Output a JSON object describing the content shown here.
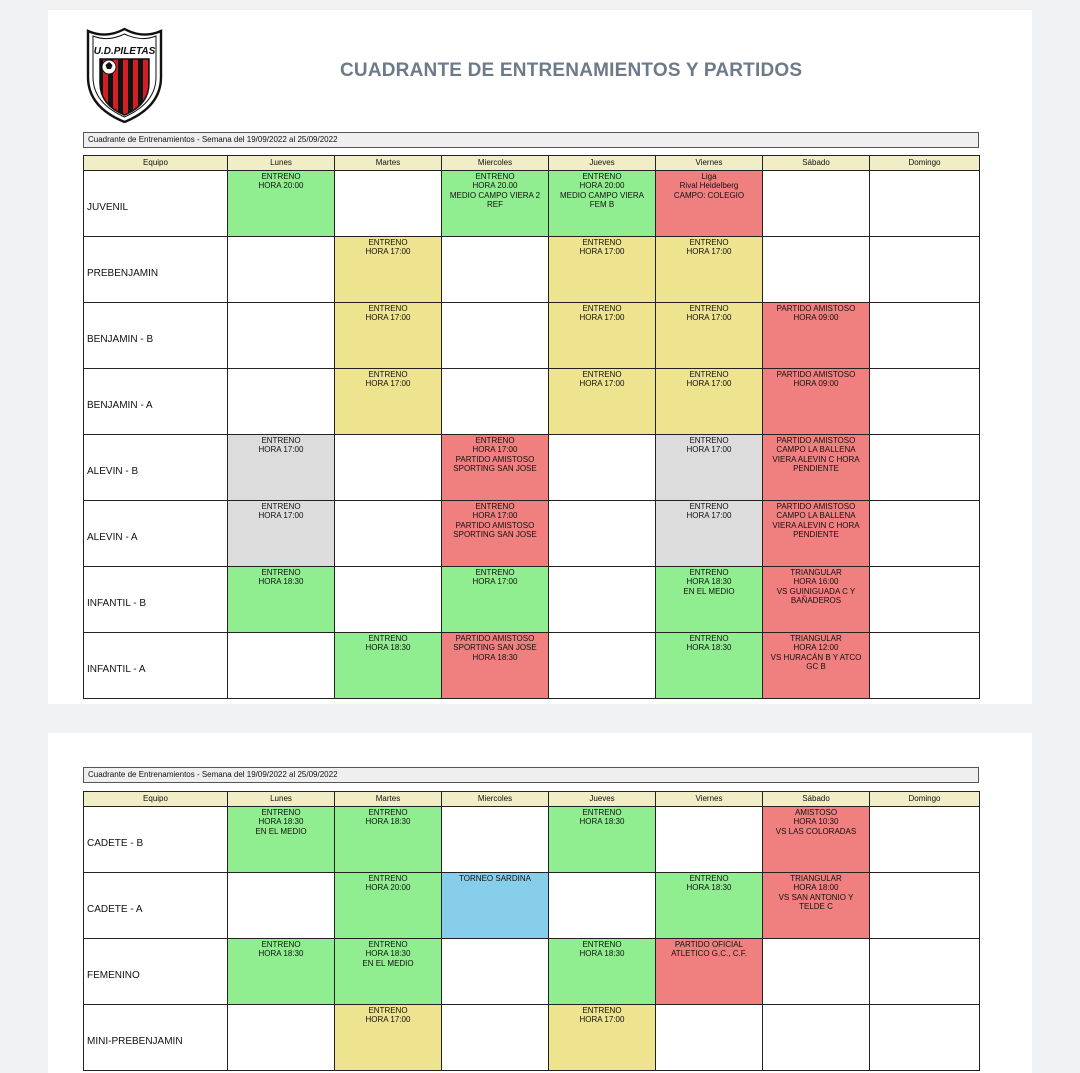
{
  "club": {
    "logo_text": "U.D.PILETAS"
  },
  "document": {
    "title": "CUADRANTE DE ENTRENAMIENTOS Y PARTIDOS"
  },
  "colors": {
    "entreno_green": "#90ee90",
    "entreno_yellow": "#eee38e",
    "partido_red": "#f08080",
    "entreno_gray": "#dcdcdc",
    "torneo_blue": "#87ceeb",
    "header_bg": "#f0edc7"
  },
  "columns": [
    "Equipo",
    "Lunes",
    "Martes",
    "Miercoles",
    "Jueves",
    "Viernes",
    "Sábado",
    "Domingo"
  ],
  "pages": [
    {
      "week_label": "Cuadrante de Entrenamientos - Semana del 19/09/2022 al 25/09/2022",
      "rows": [
        {
          "team": "JUVENIL",
          "cells": [
            {
              "color": "green",
              "text": "ENTRENO\nHORA 20:00"
            },
            {
              "color": "none",
              "text": ""
            },
            {
              "color": "green",
              "text": "ENTRENO\nHORA 20.00\nMEDIO CAMPO VIERA 2\nREF"
            },
            {
              "color": "green",
              "text": "ENTRENO\nHORA 20:00\nMEDIO CAMPO VIERA\nFEM B"
            },
            {
              "color": "red",
              "text": "Liga\nRival Heidelberg\nCAMPO: COLEGIO"
            },
            {
              "color": "none",
              "text": ""
            },
            {
              "color": "none",
              "text": ""
            }
          ]
        },
        {
          "team": "PREBENJAMIN",
          "cells": [
            {
              "color": "none",
              "text": ""
            },
            {
              "color": "yellow",
              "text": "ENTRENO\nHORA 17:00"
            },
            {
              "color": "none",
              "text": ""
            },
            {
              "color": "yellow",
              "text": "ENTRENO\nHORA 17:00"
            },
            {
              "color": "yellow",
              "text": "ENTRENO\nHORA 17:00"
            },
            {
              "color": "none",
              "text": ""
            },
            {
              "color": "none",
              "text": ""
            }
          ]
        },
        {
          "team": "BENJAMIN - B",
          "cells": [
            {
              "color": "none",
              "text": ""
            },
            {
              "color": "yellow",
              "text": "ENTRENO\nHORA 17:00"
            },
            {
              "color": "none",
              "text": ""
            },
            {
              "color": "yellow",
              "text": "ENTRENO\nHORA 17:00"
            },
            {
              "color": "yellow",
              "text": "ENTRENO\nHORA 17:00"
            },
            {
              "color": "red",
              "text": "PARTIDO AMISTOSO\nHORA 09:00"
            },
            {
              "color": "none",
              "text": ""
            }
          ]
        },
        {
          "team": "BENJAMIN - A",
          "cells": [
            {
              "color": "none",
              "text": ""
            },
            {
              "color": "yellow",
              "text": "ENTRENO\nHORA 17:00"
            },
            {
              "color": "none",
              "text": ""
            },
            {
              "color": "yellow",
              "text": "ENTRENO\nHORA 17:00"
            },
            {
              "color": "yellow",
              "text": "ENTRENO\nHORA 17:00"
            },
            {
              "color": "red",
              "text": "PARTIDO AMISTOSO\nHORA 09:00"
            },
            {
              "color": "none",
              "text": ""
            }
          ]
        },
        {
          "team": "ALEVIN - B",
          "cells": [
            {
              "color": "gray",
              "text": "ENTRENO\nHORA 17:00"
            },
            {
              "color": "none",
              "text": ""
            },
            {
              "color": "red",
              "text": "ENTRENO\nHORA 17:00\nPARTIDO AMISTOSO\nSPORTING SAN JOSE"
            },
            {
              "color": "none",
              "text": ""
            },
            {
              "color": "gray",
              "text": "ENTRENO\nHORA 17:00"
            },
            {
              "color": "red",
              "text": "PARTIDO AMISTOSO\nCAMPO LA BALLENA\nVIERA ALEVIN C  HORA\nPENDIENTE"
            },
            {
              "color": "none",
              "text": ""
            }
          ]
        },
        {
          "team": "ALEVIN - A",
          "cells": [
            {
              "color": "gray",
              "text": "ENTRENO\nHORA 17:00"
            },
            {
              "color": "none",
              "text": ""
            },
            {
              "color": "red",
              "text": "ENTRENO\nHORA 17:00\nPARTIDO AMISTOSO\nSPORTING SAN JOSE"
            },
            {
              "color": "none",
              "text": ""
            },
            {
              "color": "gray",
              "text": "ENTRENO\nHORA 17:00"
            },
            {
              "color": "red",
              "text": "PARTIDO AMISTOSO\nCAMPO LA BALLENA\nVIERA ALEVIN C  HORA\nPENDIENTE"
            },
            {
              "color": "none",
              "text": ""
            }
          ]
        },
        {
          "team": "INFANTIL - B",
          "cells": [
            {
              "color": "green",
              "text": "ENTRENO\nHORA 18:30"
            },
            {
              "color": "none",
              "text": ""
            },
            {
              "color": "green",
              "text": "ENTRENO\nHORA 17:00"
            },
            {
              "color": "none",
              "text": ""
            },
            {
              "color": "green",
              "text": "ENTRENO\nHORA 18:30\nEN EL MEDIO"
            },
            {
              "color": "red",
              "text": "TRIANGULAR\nHORA 16:00\nVS GUINIGUADA C Y\nBAÑADEROS"
            },
            {
              "color": "none",
              "text": ""
            }
          ]
        },
        {
          "team": "INFANTIL - A",
          "cells": [
            {
              "color": "none",
              "text": ""
            },
            {
              "color": "green",
              "text": "ENTRENO\nHORA 18:30"
            },
            {
              "color": "red",
              "text": "PARTIDO AMISTOSO\nSPORTING SAN JOSE\nHORA 18:30"
            },
            {
              "color": "none",
              "text": ""
            },
            {
              "color": "green",
              "text": "ENTRENO\nHORA 18:30"
            },
            {
              "color": "red",
              "text": "TRIANGULAR\nHORA 12:00\nVS HURACÁN B Y ATCO\nGC B"
            },
            {
              "color": "none",
              "text": ""
            }
          ]
        }
      ]
    },
    {
      "week_label": "Cuadrante de Entrenamientos - Semana del 19/09/2022 al 25/09/2022",
      "rows": [
        {
          "team": "CADETE - B",
          "cells": [
            {
              "color": "green",
              "text": "ENTRENO\nHORA 18:30\nEN EL MEDIO"
            },
            {
              "color": "green",
              "text": "ENTRENO\nHORA 18:30"
            },
            {
              "color": "none",
              "text": ""
            },
            {
              "color": "green",
              "text": "ENTRENO\nHORA 18:30"
            },
            {
              "color": "none",
              "text": ""
            },
            {
              "color": "red",
              "text": "AMISTOSO\nHORA 10:30\nVS LAS COLORADAS"
            },
            {
              "color": "none",
              "text": ""
            }
          ]
        },
        {
          "team": "CADETE - A",
          "cells": [
            {
              "color": "none",
              "text": ""
            },
            {
              "color": "green",
              "text": "ENTRENO\nHORA 20:00"
            },
            {
              "color": "blue",
              "text": "TORNEO SARDINA"
            },
            {
              "color": "none",
              "text": ""
            },
            {
              "color": "green",
              "text": "ENTRENO\nHORA 18:30"
            },
            {
              "color": "red",
              "text": "TRIANGULAR\nHORA 18:00\nVS SAN ANTONIO Y\nTELDE C"
            },
            {
              "color": "none",
              "text": ""
            }
          ]
        },
        {
          "team": "FEMENINO",
          "cells": [
            {
              "color": "green",
              "text": "ENTRENO\nHORA 18:30"
            },
            {
              "color": "green",
              "text": "ENTRENO\nHORA 18:30\nEN EL MEDIO"
            },
            {
              "color": "none",
              "text": ""
            },
            {
              "color": "green",
              "text": "ENTRENO\nHORA 18:30"
            },
            {
              "color": "red",
              "text": "PARTIDO OFICIAL\nATLETICO G.C., C.F."
            },
            {
              "color": "none",
              "text": ""
            },
            {
              "color": "none",
              "text": ""
            }
          ]
        },
        {
          "team": "MINI-PREBENJAMIN",
          "cells": [
            {
              "color": "none",
              "text": ""
            },
            {
              "color": "yellow",
              "text": "ENTRENO\nHORA 17:00"
            },
            {
              "color": "none",
              "text": ""
            },
            {
              "color": "yellow",
              "text": "ENTRENO\nHORA 17:00"
            },
            {
              "color": "none",
              "text": ""
            },
            {
              "color": "none",
              "text": ""
            },
            {
              "color": "none",
              "text": ""
            }
          ]
        }
      ]
    }
  ]
}
